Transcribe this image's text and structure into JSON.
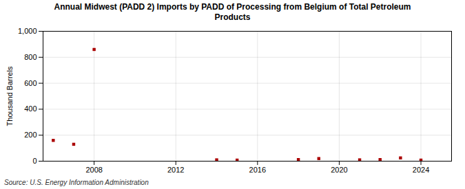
{
  "chart_data": {
    "type": "scatter",
    "title": "Annual Midwest (PADD 2) Imports by PADD of Processing from Belgium of Total Petroleum\nProducts",
    "ylabel": "Thousand Barrels",
    "source": "Source: U.S. Energy Information Administration",
    "x": [
      2006,
      2007,
      2008,
      2014,
      2015,
      2018,
      2019,
      2021,
      2022,
      2023,
      2024
    ],
    "values": [
      160,
      130,
      860,
      10,
      8,
      12,
      20,
      10,
      12,
      25,
      8
    ],
    "color": "#aa0000",
    "marker": "square",
    "xlim": [
      2005.5,
      2025.5
    ],
    "ylim": [
      0,
      1000
    ],
    "xticks": [
      2008,
      2012,
      2016,
      2020,
      2024
    ],
    "yticks": [
      0,
      200,
      400,
      600,
      800,
      {
        "value": 1000,
        "label": "1,000"
      }
    ],
    "grid": true
  }
}
